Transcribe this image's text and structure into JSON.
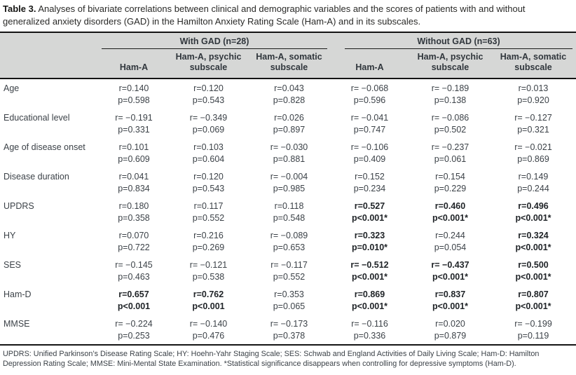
{
  "title": {
    "number": "Table 3.",
    "text": "Analyses of bivariate correlations between clinical and demographic variables and the scores of patients with and without generalized anxiety disorders (GAD) in the Hamilton Anxiety Rating Scale (Ham-A) and in its subscales."
  },
  "table": {
    "groups": [
      {
        "label": "With GAD (n=28)"
      },
      {
        "label": "Without GAD (n=63)"
      }
    ],
    "columns": [
      "Ham-A",
      "Ham-A, psychic subscale",
      "Ham-A, somatic subscale",
      "Ham-A",
      "Ham-A, psychic subscale",
      "Ham-A, somatic subscale"
    ],
    "rows": [
      {
        "label": "Age",
        "cells": [
          {
            "r": "r=0.140",
            "p": "p=0.598",
            "bold": false
          },
          {
            "r": "r=0.120",
            "p": "p=0.543",
            "bold": false
          },
          {
            "r": "r=0.043",
            "p": "p=0.828",
            "bold": false
          },
          {
            "r": "r= −0.068",
            "p": "p=0.596",
            "bold": false
          },
          {
            "r": "r= −0.189",
            "p": "p=0.138",
            "bold": false
          },
          {
            "r": "r=0.013",
            "p": "p=0.920",
            "bold": false
          }
        ]
      },
      {
        "label": "Educational level",
        "cells": [
          {
            "r": "r= −0.191",
            "p": "p=0.331",
            "bold": false
          },
          {
            "r": "r= −0.349",
            "p": "p=0.069",
            "bold": false
          },
          {
            "r": "r=0.026",
            "p": "p=0.897",
            "bold": false
          },
          {
            "r": "r= −0.041",
            "p": "p=0.747",
            "bold": false
          },
          {
            "r": "r= −0.086",
            "p": "p=0.502",
            "bold": false
          },
          {
            "r": "r= −0.127",
            "p": "p=0.321",
            "bold": false
          }
        ]
      },
      {
        "label": "Age of disease onset",
        "cells": [
          {
            "r": "r=0.101",
            "p": "p=0.609",
            "bold": false
          },
          {
            "r": "r=0.103",
            "p": "p=0.604",
            "bold": false
          },
          {
            "r": "r= −0.030",
            "p": "p=0.881",
            "bold": false
          },
          {
            "r": "r= −0.106",
            "p": "p=0.409",
            "bold": false
          },
          {
            "r": "r= −0.237",
            "p": "p=0.061",
            "bold": false
          },
          {
            "r": "r= −0.021",
            "p": "p=0.869",
            "bold": false
          }
        ]
      },
      {
        "label": "Disease duration",
        "cells": [
          {
            "r": "r=0.041",
            "p": "p=0.834",
            "bold": false
          },
          {
            "r": "r=0.120",
            "p": "p=0.543",
            "bold": false
          },
          {
            "r": "r= −0.004",
            "p": "p=0.985",
            "bold": false
          },
          {
            "r": "r=0.152",
            "p": "p=0.234",
            "bold": false
          },
          {
            "r": "r=0.154",
            "p": "p=0.229",
            "bold": false
          },
          {
            "r": "r=0.149",
            "p": "p=0.244",
            "bold": false
          }
        ]
      },
      {
        "label": "UPDRS",
        "cells": [
          {
            "r": "r=0.180",
            "p": "p=0.358",
            "bold": false
          },
          {
            "r": "r=0.117",
            "p": "p=0.552",
            "bold": false
          },
          {
            "r": "r=0.118",
            "p": "p=0.548",
            "bold": false
          },
          {
            "r": "r=0.527",
            "p": "p<0.001*",
            "bold": true
          },
          {
            "r": "r=0.460",
            "p": "p<0.001*",
            "bold": true
          },
          {
            "r": "r=0.496",
            "p": "p<0.001*",
            "bold": true
          }
        ]
      },
      {
        "label": "HY",
        "cells": [
          {
            "r": "r=0.070",
            "p": "p=0.722",
            "bold": false
          },
          {
            "r": "r=0.216",
            "p": "p=0.269",
            "bold": false
          },
          {
            "r": "r= −0.089",
            "p": "p=0.653",
            "bold": false
          },
          {
            "r": "r=0.323",
            "p": "p=0.010*",
            "bold": true
          },
          {
            "r": "r=0.244",
            "p": "p=0.054",
            "bold": false
          },
          {
            "r": "r=0.324",
            "p": "p<0.001*",
            "bold": true
          }
        ]
      },
      {
        "label": "SES",
        "cells": [
          {
            "r": "r= −0.145",
            "p": "p=0.463",
            "bold": false
          },
          {
            "r": "r= −0.121",
            "p": "p=0.538",
            "bold": false
          },
          {
            "r": "r= −0.117",
            "p": "p=0.552",
            "bold": false
          },
          {
            "r": "r= −0.512",
            "p": "p<0.001*",
            "bold": true
          },
          {
            "r": "r= −0.437",
            "p": "p<0.001*",
            "bold": true
          },
          {
            "r": "r=0.500",
            "p": "p<0.001*",
            "bold": true
          }
        ]
      },
      {
        "label": "Ham-D",
        "cells": [
          {
            "r": "r=0.657",
            "p": "p<0.001",
            "bold": true
          },
          {
            "r": "r=0.762",
            "p": "p<0.001",
            "bold": true
          },
          {
            "r": "r=0.353",
            "p": "p=0.065",
            "bold": false
          },
          {
            "r": "r=0.869",
            "p": "p<0.001*",
            "bold": true
          },
          {
            "r": "r=0.837",
            "p": "p<0.001*",
            "bold": true
          },
          {
            "r": "r=0.807",
            "p": "p<0.001*",
            "bold": true
          }
        ]
      },
      {
        "label": "MMSE",
        "cells": [
          {
            "r": "r= −0.224",
            "p": "p=0.253",
            "bold": false
          },
          {
            "r": "r= −0.140",
            "p": "p=0.476",
            "bold": false
          },
          {
            "r": "r= −0.173",
            "p": "p=0.378",
            "bold": false
          },
          {
            "r": "r= −0.116",
            "p": "p=0.336",
            "bold": false
          },
          {
            "r": "r=0.020",
            "p": "p=0.879",
            "bold": false
          },
          {
            "r": "r= −0.199",
            "p": "p=0.119",
            "bold": false
          }
        ]
      }
    ]
  },
  "footnote": "UPDRS: Unified Parkinson’s Disease Rating Scale; HY: Hoehn-Yahr Staging Scale; SES: Schwab and England Activities of Daily Living Scale; Ham-D: Hamilton Depression Rating Scale; MMSE: Mini-Mental State Examination. *Statistical significance disappears when controlling for depressive symptoms (Ham-D)."
}
